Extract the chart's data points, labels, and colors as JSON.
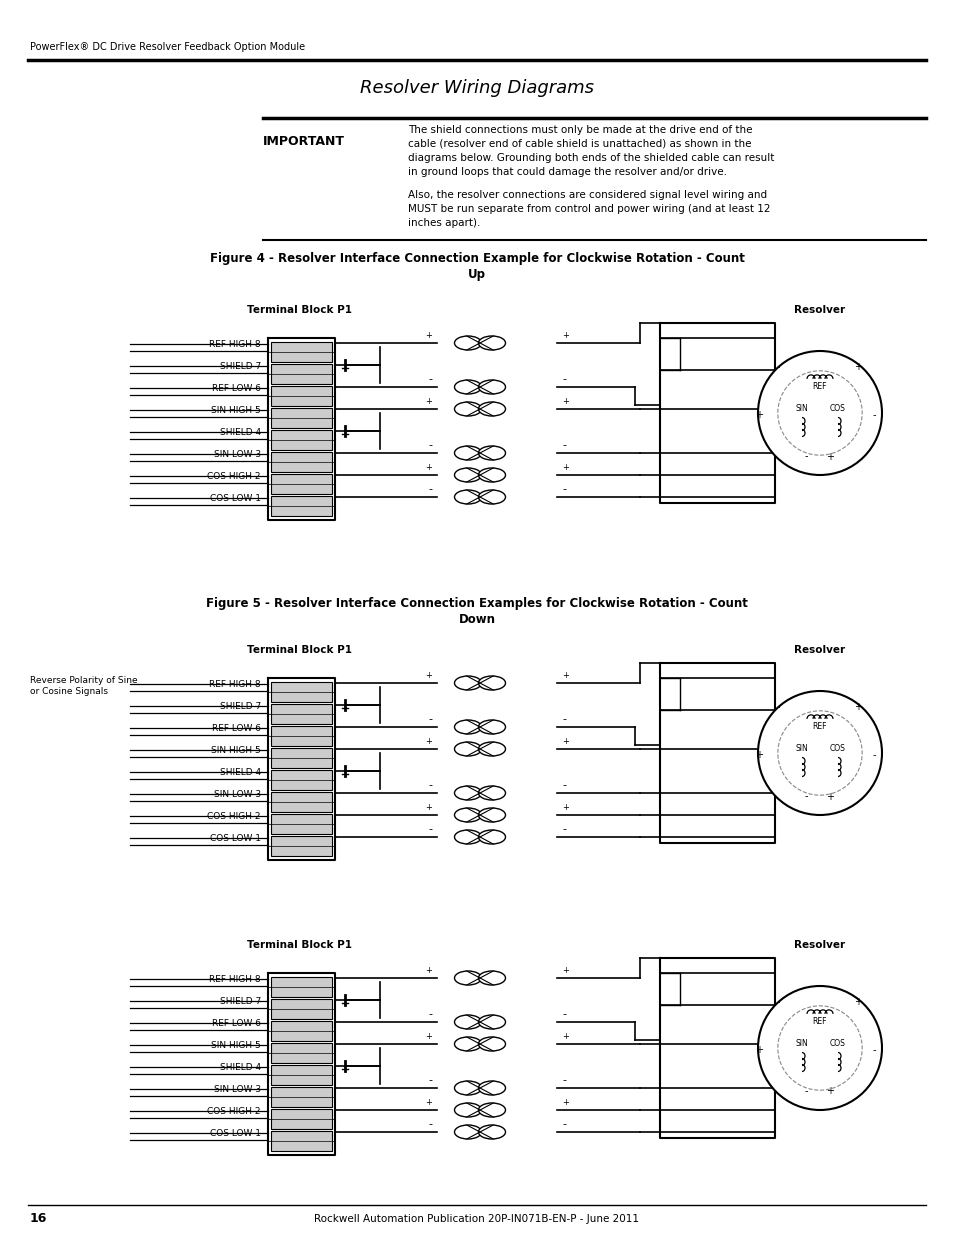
{
  "page_header": "PowerFlex® DC Drive Resolver Feedback Option Module",
  "page_title": "Resolver Wiring Diagrams",
  "important_label": "IMPORTANT",
  "important_text1": "The shield connections must only be made at the drive end of the\ncable (resolver end of cable shield is unattached) as shown in the\ndiagrams below. Grounding both ends of the shielded cable can result\nin ground loops that could damage the resolver and/or drive.",
  "important_text2": "Also, the resolver connections are considered signal level wiring and\nMUST be run separate from control and power wiring (and at least 12\ninches apart).",
  "fig4_title": "Figure 4 - Resolver Interface Connection Example for Clockwise Rotation - Count\nUp",
  "fig5_title": "Figure 5 - Resolver Interface Connection Examples for Clockwise Rotation - Count\nDown",
  "terminal_block_label": "Terminal Block P1",
  "resolver_label": "Resolver",
  "terminal_labels": [
    "REF HIGH 8",
    "SHIELD 7",
    "REF LOW 6",
    "SIN HIGH 5",
    "SHIELD 4",
    "SIN LOW 3",
    "COS HIGH 2",
    "COS LOW 1"
  ],
  "page_footer": "Rockwell Automation Publication 20P-IN071B-EN-P - June 2011",
  "page_number": "16",
  "reverse_polarity_label": "Reverse Polarity of Sine\nor Cosine Signals",
  "bg_color": "#ffffff",
  "text_color": "#000000"
}
